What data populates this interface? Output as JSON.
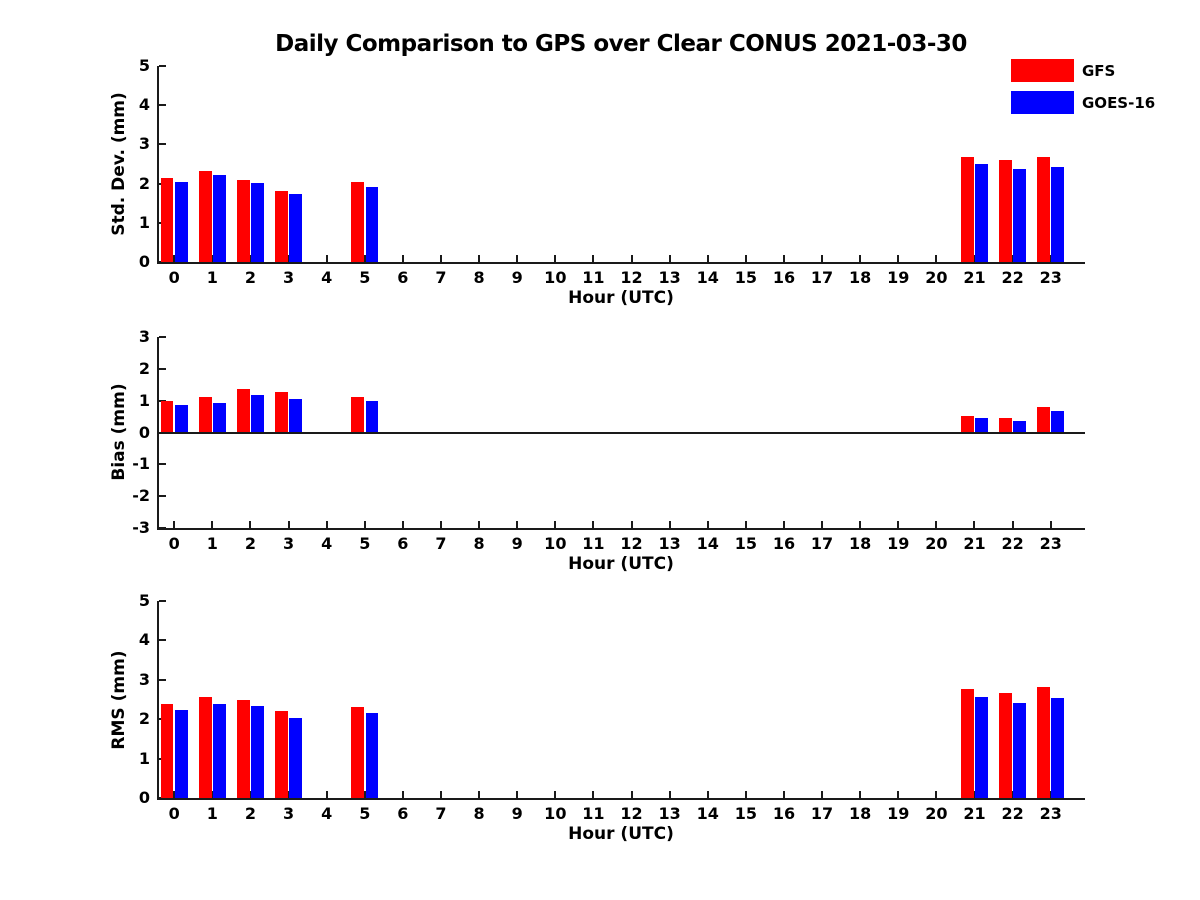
{
  "title": "Daily Comparison to GPS over Clear CONUS 2021-03-30",
  "legend": {
    "items": [
      {
        "label": "GFS",
        "color": "#ff0000"
      },
      {
        "label": "GOES-16",
        "color": "#0000ff"
      }
    ]
  },
  "axis_color": "#1a1a1a",
  "chart_data": [
    {
      "type": "bar",
      "panel": "std-dev",
      "ylabel": "Std. Dev. (mm)",
      "xlabel": "Hour (UTC)",
      "ylim": [
        0,
        5
      ],
      "yticks": [
        0,
        1,
        2,
        3,
        4,
        5
      ],
      "xlim": [
        -0.4,
        23.9
      ],
      "xticks": [
        0,
        1,
        2,
        3,
        4,
        5,
        6,
        7,
        8,
        9,
        10,
        11,
        12,
        13,
        14,
        15,
        16,
        17,
        18,
        19,
        20,
        21,
        22,
        23
      ],
      "categories": [
        0,
        1,
        2,
        3,
        4,
        5,
        6,
        7,
        8,
        9,
        10,
        11,
        12,
        13,
        14,
        15,
        16,
        17,
        18,
        19,
        20,
        21,
        22,
        23
      ],
      "grid": false,
      "legend_position": "top-right-outside",
      "series": [
        {
          "name": "GFS",
          "color": "#ff0000",
          "values": [
            2.15,
            2.33,
            2.1,
            1.82,
            null,
            2.03,
            null,
            null,
            null,
            null,
            null,
            null,
            null,
            null,
            null,
            null,
            null,
            null,
            null,
            null,
            null,
            2.68,
            2.61,
            2.69
          ]
        },
        {
          "name": "GOES-16",
          "color": "#0000ff",
          "values": [
            2.05,
            2.21,
            2.02,
            1.73,
            null,
            1.92,
            null,
            null,
            null,
            null,
            null,
            null,
            null,
            null,
            null,
            null,
            null,
            null,
            null,
            null,
            null,
            2.49,
            2.36,
            2.42
          ]
        }
      ]
    },
    {
      "type": "bar",
      "panel": "bias",
      "ylabel": "Bias (mm)",
      "xlabel": "Hour (UTC)",
      "ylim": [
        -3,
        3
      ],
      "yticks": [
        3,
        2,
        1,
        0,
        -1,
        -2,
        -3
      ],
      "zero_line": true,
      "xlim": [
        -0.4,
        23.9
      ],
      "xticks": [
        0,
        1,
        2,
        3,
        4,
        5,
        6,
        7,
        8,
        9,
        10,
        11,
        12,
        13,
        14,
        15,
        16,
        17,
        18,
        19,
        20,
        21,
        22,
        23
      ],
      "categories": [
        0,
        1,
        2,
        3,
        4,
        5,
        6,
        7,
        8,
        9,
        10,
        11,
        12,
        13,
        14,
        15,
        16,
        17,
        18,
        19,
        20,
        21,
        22,
        23
      ],
      "grid": false,
      "series": [
        {
          "name": "GFS",
          "color": "#ff0000",
          "values": [
            1.0,
            1.1,
            1.36,
            1.26,
            null,
            1.12,
            null,
            null,
            null,
            null,
            null,
            null,
            null,
            null,
            null,
            null,
            null,
            null,
            null,
            null,
            null,
            0.52,
            0.45,
            0.79
          ]
        },
        {
          "name": "GOES-16",
          "color": "#0000ff",
          "values": [
            0.86,
            0.92,
            1.18,
            1.04,
            null,
            0.99,
            null,
            null,
            null,
            null,
            null,
            null,
            null,
            null,
            null,
            null,
            null,
            null,
            null,
            null,
            null,
            0.47,
            0.36,
            0.67
          ]
        }
      ]
    },
    {
      "type": "bar",
      "panel": "rms",
      "ylabel": "RMS (mm)",
      "xlabel": "Hour (UTC)",
      "ylim": [
        0,
        5
      ],
      "yticks": [
        0,
        1,
        2,
        3,
        4,
        5
      ],
      "xlim": [
        -0.4,
        23.9
      ],
      "xticks": [
        0,
        1,
        2,
        3,
        4,
        5,
        6,
        7,
        8,
        9,
        10,
        11,
        12,
        13,
        14,
        15,
        16,
        17,
        18,
        19,
        20,
        21,
        22,
        23
      ],
      "categories": [
        0,
        1,
        2,
        3,
        4,
        5,
        6,
        7,
        8,
        9,
        10,
        11,
        12,
        13,
        14,
        15,
        16,
        17,
        18,
        19,
        20,
        21,
        22,
        23
      ],
      "grid": false,
      "series": [
        {
          "name": "GFS",
          "color": "#ff0000",
          "values": [
            2.38,
            2.56,
            2.49,
            2.2,
            null,
            2.31,
            null,
            null,
            null,
            null,
            null,
            null,
            null,
            null,
            null,
            null,
            null,
            null,
            null,
            null,
            null,
            2.77,
            2.67,
            2.81
          ]
        },
        {
          "name": "GOES-16",
          "color": "#0000ff",
          "values": [
            2.24,
            2.39,
            2.33,
            2.03,
            null,
            2.15,
            null,
            null,
            null,
            null,
            null,
            null,
            null,
            null,
            null,
            null,
            null,
            null,
            null,
            null,
            null,
            2.56,
            2.41,
            2.53
          ]
        }
      ]
    }
  ]
}
